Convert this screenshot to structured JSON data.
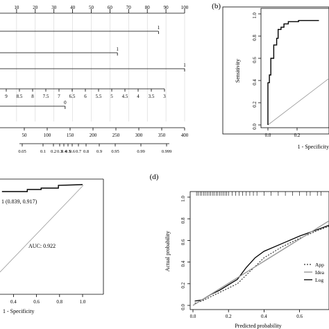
{
  "chart_data": [
    {
      "panel": "a",
      "type": "nomogram",
      "points_scale": {
        "ticks": [
          "0",
          "10",
          "20",
          "30",
          "40",
          "50",
          "60",
          "70",
          "80",
          "90",
          "100"
        ],
        "range": [
          0,
          100
        ]
      },
      "predictors": [
        {
          "end_label": "1",
          "reach_points": 86
        },
        {
          "end_label": "1",
          "reach_points": 64
        },
        {
          "end_label": "1",
          "reach_points": 100
        },
        {
          "ticks": [
            "9",
            "8.5",
            "8",
            "7.5",
            "7",
            "6.5",
            "6",
            "5.5",
            "5",
            "4.5",
            "4",
            "3.5",
            "3"
          ]
        },
        {
          "end_label": "0",
          "reach_points": 36
        }
      ],
      "total_points": {
        "ticks": [
          "50",
          "100",
          "150",
          "200",
          "250",
          "300",
          "350",
          "400"
        ],
        "range": [
          0,
          400
        ]
      },
      "risk_ticks": [
        "0.05",
        "0.1",
        "0.2",
        "0.3",
        "0.4",
        "0.5",
        "0.6",
        "0.7",
        "0.8",
        "0.9",
        "0.95",
        "0.99",
        "0.999"
      ]
    },
    {
      "panel": "b",
      "panel_label": "(b)",
      "type": "roc",
      "xlabel": "1 - Specificity",
      "ylabel": "Sensitivity",
      "xlim": [
        0,
        1
      ],
      "ylim": [
        0,
        1
      ],
      "x_ticks": [
        "0.0",
        "0.2"
      ],
      "y_ticks": [
        "0.0",
        "0.2",
        "0.4",
        "0.6",
        "0.8",
        "1.0"
      ],
      "curve": [
        [
          0,
          0
        ],
        [
          0,
          0.38
        ],
        [
          0.01,
          0.38
        ],
        [
          0.01,
          0.45
        ],
        [
          0.02,
          0.45
        ],
        [
          0.02,
          0.6
        ],
        [
          0.04,
          0.6
        ],
        [
          0.04,
          0.72
        ],
        [
          0.06,
          0.72
        ],
        [
          0.06,
          0.78
        ],
        [
          0.07,
          0.78
        ],
        [
          0.07,
          0.86
        ],
        [
          0.09,
          0.86
        ],
        [
          0.09,
          0.88
        ],
        [
          0.11,
          0.88
        ],
        [
          0.11,
          0.91
        ],
        [
          0.14,
          0.91
        ],
        [
          0.14,
          0.93
        ],
        [
          0.21,
          0.93
        ],
        [
          0.21,
          0.94
        ],
        [
          0.35,
          0.94
        ]
      ]
    },
    {
      "panel": "c",
      "type": "roc",
      "xlabel": "1 - Specificity",
      "annotation_point": "1 (0.839, 0.917)",
      "auc_label": "AUC: 0.922",
      "x_ticks": [
        "0.4",
        "0.6",
        "0.8",
        "1.0"
      ],
      "curve": [
        [
          0.3,
          0.9
        ],
        [
          0.52,
          0.9
        ],
        [
          0.52,
          0.93
        ],
        [
          0.64,
          0.93
        ],
        [
          0.64,
          0.95
        ],
        [
          0.79,
          0.95
        ],
        [
          0.79,
          0.99
        ],
        [
          1.0,
          1.0
        ]
      ]
    },
    {
      "panel": "d",
      "panel_label": "(d)",
      "type": "line",
      "xlabel": "Predicted probability",
      "ylabel": "Actual probability",
      "xlim": [
        0,
        0.78
      ],
      "ylim": [
        0,
        1
      ],
      "x_ticks": [
        "0.0",
        "0.2",
        "0.4",
        "0.6"
      ],
      "y_ticks": [
        "0.0",
        "0.2",
        "0.4",
        "0.6",
        "0.8",
        "1.0"
      ],
      "legend": [
        "App",
        "Idea",
        "Log"
      ],
      "legend_position": "bottom-right",
      "series": [
        {
          "name": "Log",
          "style": "solid-black",
          "values": [
            [
              0.01,
              0.04
            ],
            [
              0.05,
              0.05
            ],
            [
              0.1,
              0.1
            ],
            [
              0.15,
              0.14
            ],
            [
              0.2,
              0.19
            ],
            [
              0.25,
              0.24
            ],
            [
              0.3,
              0.35
            ],
            [
              0.35,
              0.44
            ],
            [
              0.4,
              0.5
            ],
            [
              0.5,
              0.57
            ],
            [
              0.6,
              0.64
            ],
            [
              0.7,
              0.7
            ],
            [
              0.78,
              0.74
            ]
          ]
        },
        {
          "name": "App",
          "style": "dashed",
          "values": [
            [
              0.01,
              0.02
            ],
            [
              0.05,
              0.04
            ],
            [
              0.1,
              0.08
            ],
            [
              0.15,
              0.12
            ],
            [
              0.2,
              0.16
            ],
            [
              0.25,
              0.2
            ],
            [
              0.3,
              0.28
            ],
            [
              0.35,
              0.36
            ],
            [
              0.4,
              0.44
            ],
            [
              0.5,
              0.54
            ],
            [
              0.6,
              0.62
            ],
            [
              0.7,
              0.69
            ],
            [
              0.78,
              0.73
            ]
          ]
        },
        {
          "name": "Idea",
          "style": "solid-gray",
          "values": [
            [
              0,
              0
            ],
            [
              0.78,
              0.78
            ]
          ]
        }
      ],
      "rug": [
        0.02,
        0.03,
        0.04,
        0.05,
        0.06,
        0.07,
        0.08,
        0.09,
        0.1,
        0.11,
        0.12,
        0.13,
        0.14,
        0.15,
        0.16,
        0.17,
        0.18,
        0.19,
        0.2,
        0.22,
        0.24,
        0.26,
        0.28,
        0.3,
        0.32,
        0.34,
        0.36,
        0.4,
        0.44,
        0.48,
        0.52,
        0.56,
        0.6,
        0.64,
        0.66,
        0.7,
        0.72
      ]
    }
  ]
}
